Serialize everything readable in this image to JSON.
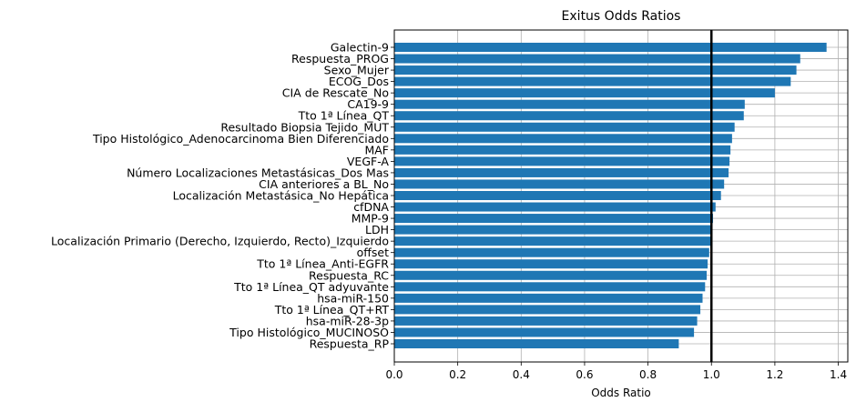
{
  "chart_data": {
    "type": "bar",
    "orientation": "horizontal",
    "title": "Exitus Odds Ratios",
    "xlabel": "Odds Ratio",
    "ylabel": "",
    "xlim": [
      0,
      1.43
    ],
    "xticks": [
      "0.0",
      "0.2",
      "0.4",
      "0.6",
      "0.8",
      "1.0",
      "1.2",
      "1.4"
    ],
    "grid": true,
    "reference_line": 1.0,
    "bar_color": "#1f77b4",
    "categories": [
      "Galectin-9",
      "Respuesta_PROG",
      "Sexo_Mujer",
      "ECOG_Dos",
      "CIA de Rescate_No",
      "CA19-9",
      "Tto 1ª Línea_QT",
      "Resultado Biopsia Tejido_MUT",
      "Tipo Histológico_Adenocarcinoma Bien Diferenciado",
      "MAF",
      "VEGF-A",
      "Número Localizaciones Metastásicas_Dos Mas",
      "CIA anteriores a BL_No",
      "Localización Metastásica_No Hepática",
      "cfDNA",
      "MMP-9",
      "LDH",
      "Localización Primario (Derecho, Izquierdo, Recto)_Izquierdo",
      "offset",
      "Tto 1ª Línea_Anti-EGFR",
      "Respuesta_RC",
      "Tto 1ª Línea_QT adyuvante",
      "hsa-miR-150",
      "Tto 1ª Línea_QT+RT",
      "hsa-miR-28-3p",
      "Tipo Histológico_MUCINOSO",
      "Respuesta_RP"
    ],
    "values": [
      1.363,
      1.28,
      1.268,
      1.25,
      1.2,
      1.105,
      1.102,
      1.073,
      1.065,
      1.06,
      1.057,
      1.054,
      1.04,
      1.03,
      1.013,
      1.005,
      1.0,
      1.0,
      0.993,
      0.988,
      0.985,
      0.98,
      0.972,
      0.965,
      0.955,
      0.945,
      0.897
    ]
  }
}
